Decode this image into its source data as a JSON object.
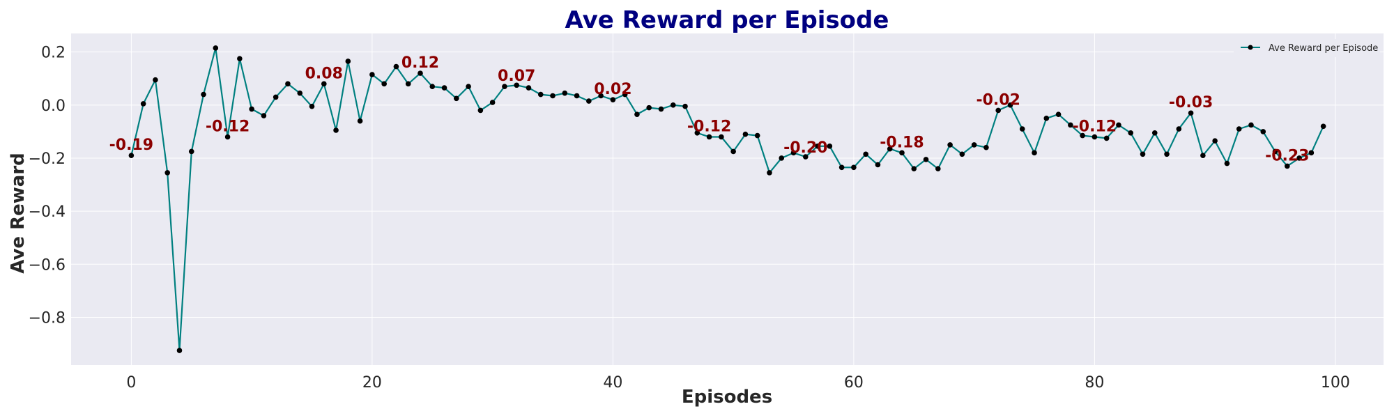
{
  "chart_data": {
    "type": "line",
    "title": "Ave Reward per Episode",
    "xlabel": "Episodes",
    "ylabel": "Ave Reward",
    "xlim": [
      -5,
      104
    ],
    "ylim": [
      -0.98,
      0.27
    ],
    "xticks": [
      0,
      20,
      40,
      60,
      80,
      100
    ],
    "yticks": [
      -0.8,
      -0.6,
      -0.4,
      -0.2,
      0.0,
      0.2
    ],
    "xtick_labels": [
      "0",
      "20",
      "40",
      "60",
      "80",
      "100"
    ],
    "ytick_labels": [
      "−0.8",
      "−0.6",
      "−0.4",
      "−0.2",
      "0.0",
      "0.2"
    ],
    "grid": true,
    "legend_position": "top-right",
    "colors": {
      "line": "#008080",
      "marker": "#000000",
      "annotation": "#8b0000",
      "title": "#000080",
      "background": "#eaeaf2"
    },
    "series": [
      {
        "name": "Ave Reward per Episode",
        "x": [
          0,
          1,
          2,
          3,
          4,
          5,
          6,
          7,
          8,
          9,
          10,
          11,
          12,
          13,
          14,
          15,
          16,
          17,
          18,
          19,
          20,
          21,
          22,
          23,
          24,
          25,
          26,
          27,
          28,
          29,
          30,
          31,
          32,
          33,
          34,
          35,
          36,
          37,
          38,
          39,
          40,
          41,
          42,
          43,
          44,
          45,
          46,
          47,
          48,
          49,
          50,
          51,
          52,
          53,
          54,
          55,
          56,
          57,
          58,
          59,
          60,
          61,
          62,
          63,
          64,
          65,
          66,
          67,
          68,
          69,
          70,
          71,
          72,
          73,
          74,
          75,
          76,
          77,
          78,
          79,
          80,
          81,
          82,
          83,
          84,
          85,
          86,
          87,
          88,
          89,
          90,
          91,
          92,
          93,
          94,
          95,
          96,
          97,
          98,
          99
        ],
        "values": [
          -0.19,
          0.005,
          0.095,
          -0.255,
          -0.925,
          -0.175,
          0.04,
          0.215,
          -0.12,
          0.175,
          -0.015,
          -0.04,
          0.03,
          0.08,
          0.045,
          -0.005,
          0.08,
          -0.095,
          0.165,
          -0.06,
          0.115,
          0.08,
          0.145,
          0.08,
          0.12,
          0.07,
          0.065,
          0.025,
          0.07,
          -0.02,
          0.01,
          0.07,
          0.075,
          0.065,
          0.04,
          0.035,
          0.045,
          0.035,
          0.015,
          0.035,
          0.02,
          0.04,
          -0.035,
          -0.01,
          -0.015,
          0.0,
          -0.005,
          -0.105,
          -0.12,
          -0.12,
          -0.175,
          -0.11,
          -0.115,
          -0.255,
          -0.2,
          -0.18,
          -0.195,
          -0.155,
          -0.155,
          -0.235,
          -0.235,
          -0.185,
          -0.225,
          -0.165,
          -0.18,
          -0.24,
          -0.205,
          -0.24,
          -0.15,
          -0.185,
          -0.15,
          -0.16,
          -0.02,
          0.0,
          -0.09,
          -0.18,
          -0.05,
          -0.035,
          -0.075,
          -0.115,
          -0.12,
          -0.125,
          -0.075,
          -0.105,
          -0.185,
          -0.105,
          -0.185,
          -0.09,
          -0.03,
          -0.19,
          -0.135,
          -0.22,
          -0.09,
          -0.075,
          -0.1,
          -0.175,
          -0.23,
          -0.2,
          -0.18,
          -0.08
        ]
      }
    ],
    "annotations": [
      {
        "x": 0,
        "y": -0.19,
        "text": "-0.19"
      },
      {
        "x": 8,
        "y": -0.12,
        "text": "-0.12"
      },
      {
        "x": 16,
        "y": 0.08,
        "text": "0.08"
      },
      {
        "x": 24,
        "y": 0.12,
        "text": "0.12"
      },
      {
        "x": 32,
        "y": 0.07,
        "text": "0.07"
      },
      {
        "x": 40,
        "y": 0.02,
        "text": "0.02"
      },
      {
        "x": 48,
        "y": -0.12,
        "text": "-0.12"
      },
      {
        "x": 56,
        "y": -0.2,
        "text": "-0.20"
      },
      {
        "x": 64,
        "y": -0.18,
        "text": "-0.18"
      },
      {
        "x": 72,
        "y": -0.02,
        "text": "-0.02"
      },
      {
        "x": 80,
        "y": -0.12,
        "text": "-0.12"
      },
      {
        "x": 88,
        "y": -0.03,
        "text": "-0.03"
      },
      {
        "x": 96,
        "y": -0.23,
        "text": "-0.23"
      }
    ]
  }
}
